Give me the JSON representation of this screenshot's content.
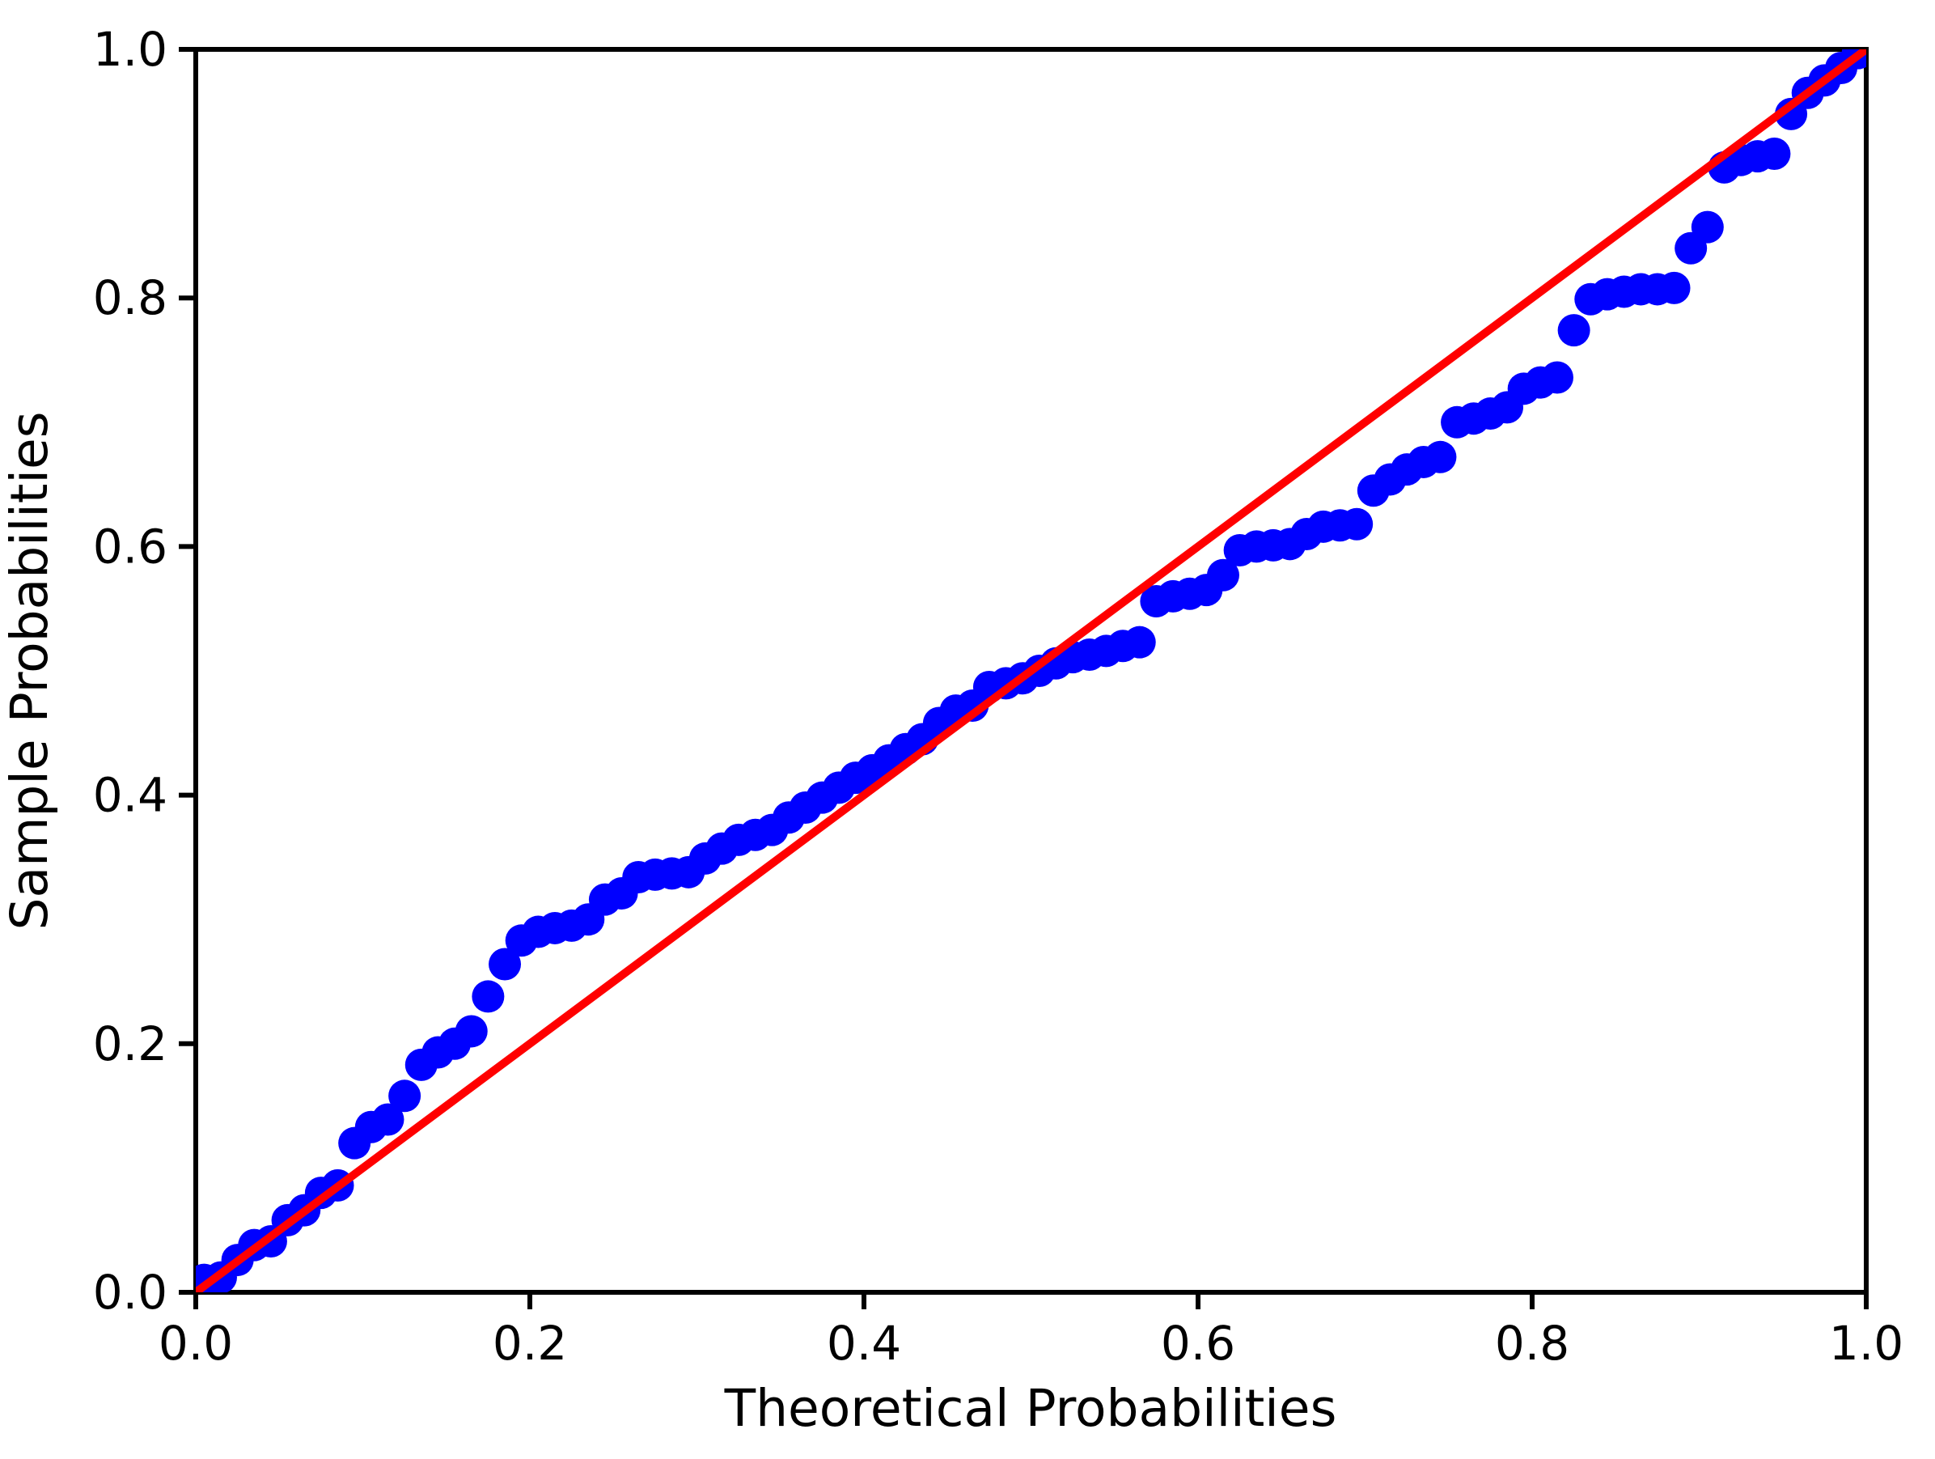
{
  "figure": {
    "background_color": "#ffffff",
    "axis_color": "#000000",
    "title": ""
  },
  "axes": {
    "xlabel": "Theoretical Probabilities",
    "ylabel": "Sample Probabilities",
    "x_tick_labels": [
      "0.0",
      "0.2",
      "0.4",
      "0.6",
      "0.8",
      "1.0"
    ],
    "y_tick_labels": [
      "0.0",
      "0.2",
      "0.4",
      "0.6",
      "0.8",
      "1.0"
    ]
  },
  "chart_data": {
    "type": "scatter",
    "title": "",
    "xlabel": "Theoretical Probabilities",
    "ylabel": "Sample Probabilities",
    "xlim": [
      0.0,
      1.0
    ],
    "ylim": [
      0.0,
      1.0
    ],
    "x_ticks": [
      0.0,
      0.2,
      0.4,
      0.6,
      0.8,
      1.0
    ],
    "y_ticks": [
      0.0,
      0.2,
      0.4,
      0.6,
      0.8,
      1.0
    ],
    "grid": false,
    "legend": null,
    "series": [
      {
        "name": "sample-vs-theoretical-points",
        "type": "scatter",
        "color": "#0000ff",
        "points": [
          [
            0.005,
            0.01
          ],
          [
            0.015,
            0.012
          ],
          [
            0.025,
            0.026
          ],
          [
            0.035,
            0.038
          ],
          [
            0.045,
            0.041
          ],
          [
            0.055,
            0.058
          ],
          [
            0.065,
            0.066
          ],
          [
            0.075,
            0.08
          ],
          [
            0.085,
            0.086
          ],
          [
            0.095,
            0.12
          ],
          [
            0.105,
            0.133
          ],
          [
            0.115,
            0.139
          ],
          [
            0.125,
            0.158
          ],
          [
            0.135,
            0.183
          ],
          [
            0.145,
            0.193
          ],
          [
            0.155,
            0.2
          ],
          [
            0.165,
            0.21
          ],
          [
            0.175,
            0.238
          ],
          [
            0.185,
            0.264
          ],
          [
            0.195,
            0.283
          ],
          [
            0.205,
            0.29
          ],
          [
            0.215,
            0.293
          ],
          [
            0.225,
            0.295
          ],
          [
            0.235,
            0.3
          ],
          [
            0.245,
            0.316
          ],
          [
            0.255,
            0.321
          ],
          [
            0.265,
            0.334
          ],
          [
            0.275,
            0.336
          ],
          [
            0.285,
            0.337
          ],
          [
            0.295,
            0.338
          ],
          [
            0.305,
            0.349
          ],
          [
            0.315,
            0.357
          ],
          [
            0.325,
            0.364
          ],
          [
            0.335,
            0.368
          ],
          [
            0.345,
            0.372
          ],
          [
            0.355,
            0.382
          ],
          [
            0.365,
            0.39
          ],
          [
            0.375,
            0.398
          ],
          [
            0.385,
            0.406
          ],
          [
            0.395,
            0.414
          ],
          [
            0.405,
            0.42
          ],
          [
            0.415,
            0.428
          ],
          [
            0.425,
            0.437
          ],
          [
            0.435,
            0.445
          ],
          [
            0.445,
            0.458
          ],
          [
            0.455,
            0.468
          ],
          [
            0.465,
            0.472
          ],
          [
            0.475,
            0.487
          ],
          [
            0.485,
            0.49
          ],
          [
            0.495,
            0.494
          ],
          [
            0.505,
            0.5
          ],
          [
            0.515,
            0.506
          ],
          [
            0.525,
            0.511
          ],
          [
            0.535,
            0.513
          ],
          [
            0.545,
            0.516
          ],
          [
            0.555,
            0.52
          ],
          [
            0.565,
            0.523
          ],
          [
            0.575,
            0.556
          ],
          [
            0.585,
            0.56
          ],
          [
            0.595,
            0.562
          ],
          [
            0.605,
            0.565
          ],
          [
            0.615,
            0.577
          ],
          [
            0.625,
            0.597
          ],
          [
            0.635,
            0.6
          ],
          [
            0.645,
            0.601
          ],
          [
            0.655,
            0.602
          ],
          [
            0.665,
            0.61
          ],
          [
            0.675,
            0.616
          ],
          [
            0.685,
            0.617
          ],
          [
            0.695,
            0.618
          ],
          [
            0.705,
            0.645
          ],
          [
            0.715,
            0.654
          ],
          [
            0.725,
            0.662
          ],
          [
            0.735,
            0.668
          ],
          [
            0.745,
            0.672
          ],
          [
            0.755,
            0.7
          ],
          [
            0.765,
            0.703
          ],
          [
            0.775,
            0.707
          ],
          [
            0.785,
            0.712
          ],
          [
            0.795,
            0.727
          ],
          [
            0.805,
            0.732
          ],
          [
            0.815,
            0.736
          ],
          [
            0.825,
            0.774
          ],
          [
            0.835,
            0.799
          ],
          [
            0.845,
            0.803
          ],
          [
            0.855,
            0.805
          ],
          [
            0.865,
            0.807
          ],
          [
            0.875,
            0.807
          ],
          [
            0.885,
            0.808
          ],
          [
            0.895,
            0.84
          ],
          [
            0.905,
            0.857
          ],
          [
            0.915,
            0.905
          ],
          [
            0.925,
            0.911
          ],
          [
            0.935,
            0.914
          ],
          [
            0.945,
            0.916
          ],
          [
            0.955,
            0.948
          ],
          [
            0.965,
            0.965
          ],
          [
            0.975,
            0.975
          ],
          [
            0.985,
            0.985
          ],
          [
            0.995,
            0.997
          ]
        ]
      },
      {
        "name": "reference-diagonal-line",
        "type": "line",
        "color": "#ff0000",
        "points": [
          [
            0.0,
            0.0
          ],
          [
            1.0,
            1.0
          ]
        ]
      }
    ]
  }
}
